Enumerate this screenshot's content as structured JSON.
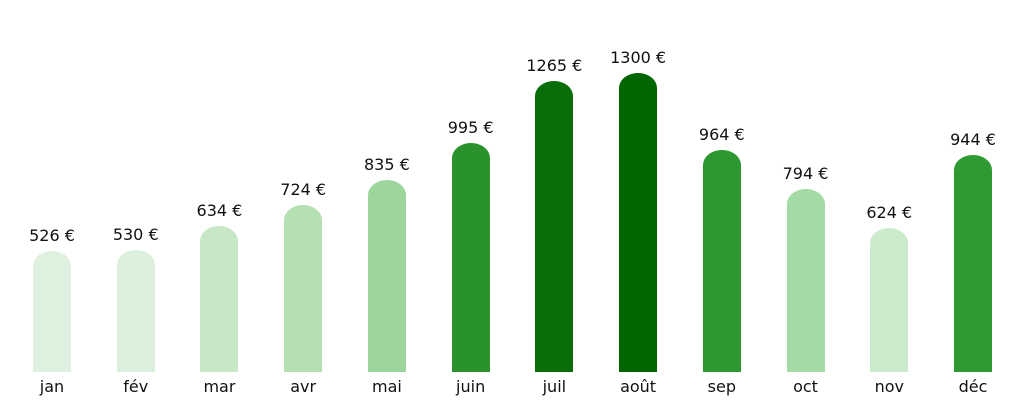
{
  "chart_data": {
    "type": "bar",
    "title": "",
    "xlabel": "",
    "ylabel": "",
    "currency_suffix": "€",
    "categories": [
      "jan",
      "fév",
      "mar",
      "avr",
      "mai",
      "juin",
      "juil",
      "août",
      "sep",
      "oct",
      "nov",
      "déc"
    ],
    "values": [
      526,
      530,
      634,
      724,
      835,
      995,
      1265,
      1300,
      964,
      794,
      624,
      944
    ],
    "value_labels": [
      "526 €",
      "530 €",
      "634 €",
      "724 €",
      "835 €",
      "995 €",
      "1265 €",
      "1300 €",
      "964 €",
      "794 €",
      "624 €",
      "944 €"
    ],
    "bar_colors": [
      "#def1de",
      "#ddf0dd",
      "#c7e7c7",
      "#b4e0b4",
      "#9cd69c",
      "#2a922d",
      "#096d09",
      "#016501",
      "#2d9730",
      "#a4daa4",
      "#cceacc",
      "#2f9a32"
    ],
    "ylim": [
      0,
      1300
    ],
    "grid": false,
    "axes_visible": false,
    "legend": null,
    "background_color": "#ffffff",
    "text_color": "#111111"
  }
}
